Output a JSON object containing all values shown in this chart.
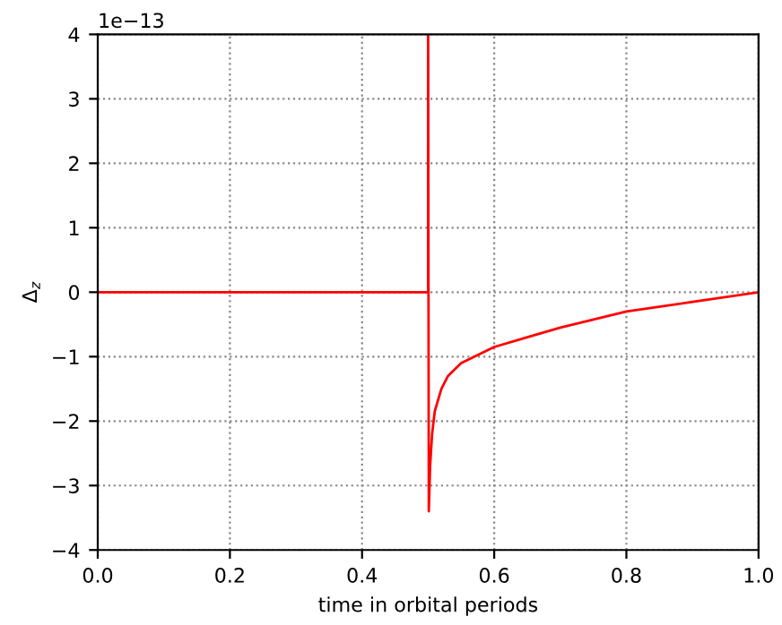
{
  "chart_data": {
    "type": "line",
    "xlabel": "time in orbital periods",
    "ylabel": "Δ$_{z}$",
    "annotations": [
      "1e−13"
    ],
    "x": [
      0,
      0.5,
      0.5,
      0.501,
      0.503,
      0.506,
      0.51,
      0.52,
      0.53,
      0.55,
      0.6,
      0.65,
      0.7,
      0.8,
      0.9,
      1.0
    ],
    "series": [
      {
        "color": "#ff0000",
        "values": [
          0,
          0,
          4,
          -3.4,
          -2.7,
          -2.2,
          -1.85,
          -1.5,
          -1.3,
          -1.1,
          -0.85,
          -0.7,
          -0.55,
          -0.3,
          -0.15,
          0
        ]
      }
    ],
    "xlim": [
      0.0,
      1.0
    ],
    "xticks": [
      {
        "value": 0.0,
        "label": "0.0"
      },
      {
        "value": 0.2,
        "label": "0.2"
      },
      {
        "value": 0.4,
        "label": "0.4"
      },
      {
        "value": 0.6,
        "label": "0.6"
      },
      {
        "value": 0.8,
        "label": "0.8"
      },
      {
        "value": 1.0,
        "label": "1.0"
      }
    ],
    "ylim": [
      -4,
      4
    ],
    "yticks": [
      -4,
      -3,
      -2,
      -1,
      0,
      1,
      2,
      3,
      4
    ],
    "grid": true,
    "line_style": "solid",
    "marker": "none"
  }
}
